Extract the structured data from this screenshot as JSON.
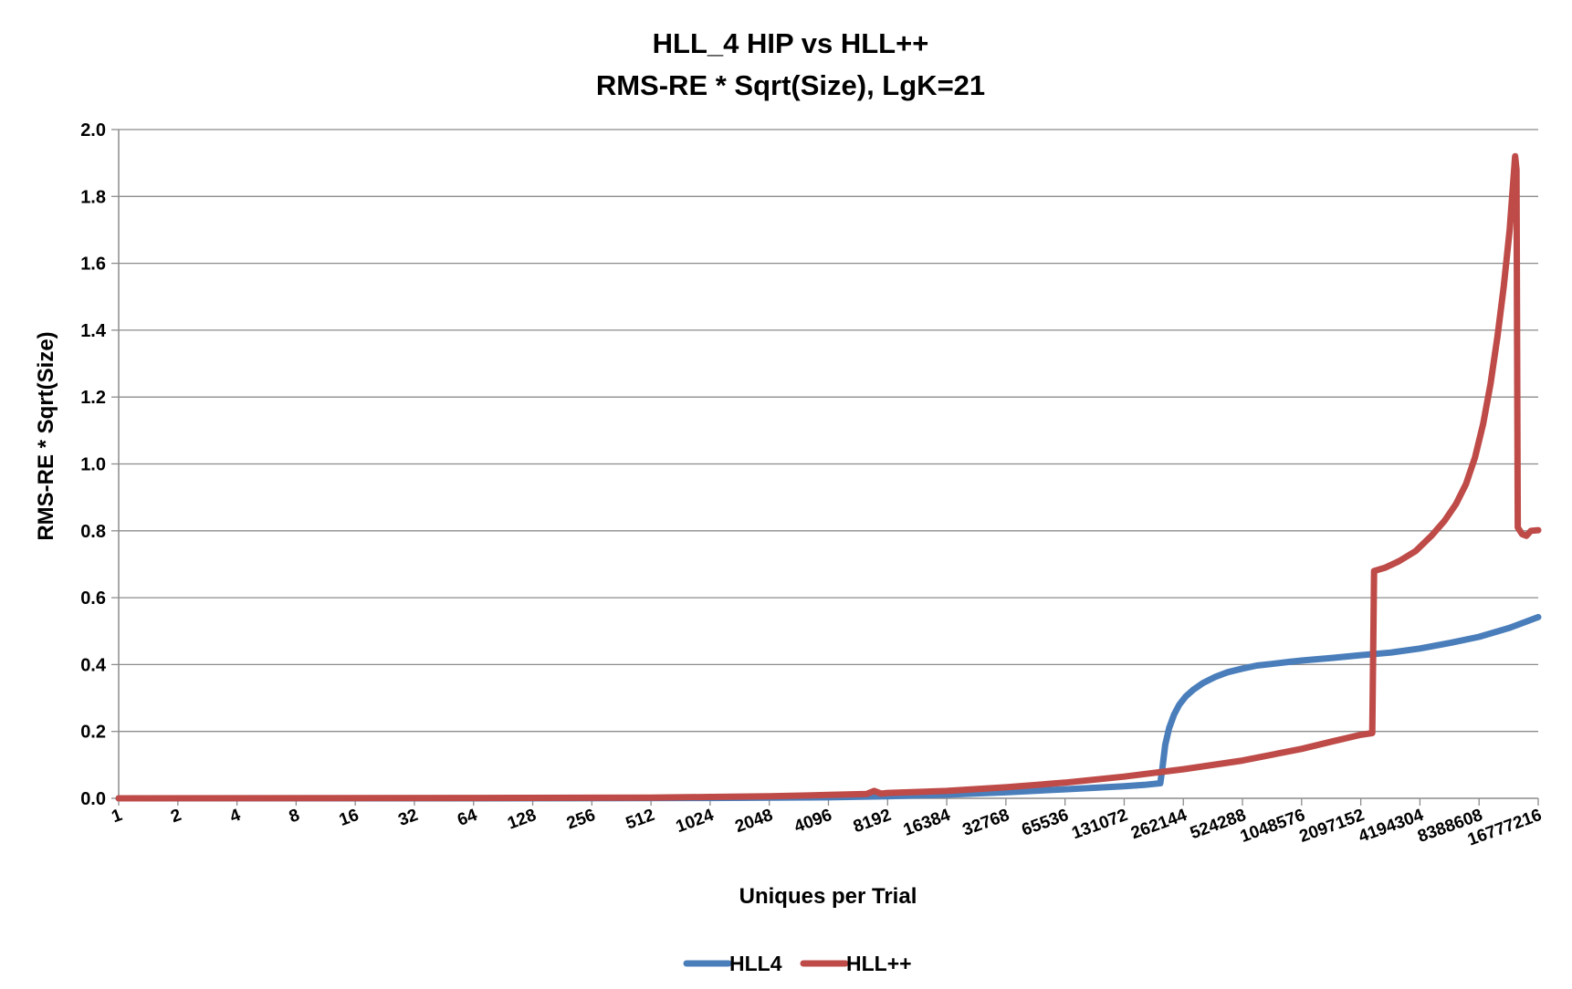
{
  "chart_data": {
    "type": "line",
    "title": [
      "HLL_4 HIP vs HLL++",
      "RMS-RE * Sqrt(Size), LgK=21"
    ],
    "xlabel": "Uniques per Trial",
    "ylabel": "RMS-RE * Sqrt(Size)",
    "x_scale": "log2",
    "xlim": [
      1,
      16777216
    ],
    "ylim": [
      0,
      2.0
    ],
    "x_ticks": [
      "1",
      "2",
      "4",
      "8",
      "16",
      "32",
      "64",
      "128",
      "256",
      "512",
      "1024",
      "2048",
      "4096",
      "8192",
      "16384",
      "32768",
      "65536",
      "131072",
      "262144",
      "524288",
      "1048576",
      "2097152",
      "4194304",
      "8388608",
      "16777216"
    ],
    "y_ticks": [
      "0.0",
      "0.2",
      "0.4",
      "0.6",
      "0.8",
      "1.0",
      "1.2",
      "1.4",
      "1.6",
      "1.8",
      "2.0"
    ],
    "grid": "horizontal",
    "legend": "bottom",
    "series": [
      {
        "name": "HLL4",
        "color": "#4a7ebb",
        "points": [
          [
            1,
            0.0
          ],
          [
            64,
            0.0
          ],
          [
            1024,
            0.001
          ],
          [
            4096,
            0.003
          ],
          [
            8192,
            0.006
          ],
          [
            16384,
            0.011
          ],
          [
            32768,
            0.018
          ],
          [
            65536,
            0.027
          ],
          [
            131072,
            0.036
          ],
          [
            166000,
            0.04
          ],
          [
            200000,
            0.045
          ],
          [
            205000,
            0.09
          ],
          [
            212000,
            0.16
          ],
          [
            222000,
            0.21
          ],
          [
            235000,
            0.25
          ],
          [
            250000,
            0.28
          ],
          [
            270000,
            0.305
          ],
          [
            295000,
            0.325
          ],
          [
            330000,
            0.345
          ],
          [
            380000,
            0.363
          ],
          [
            440000,
            0.377
          ],
          [
            524288,
            0.388
          ],
          [
            620000,
            0.397
          ],
          [
            740000,
            0.402
          ],
          [
            900000,
            0.408
          ],
          [
            1048576,
            0.412
          ],
          [
            1500000,
            0.42
          ],
          [
            2097152,
            0.428
          ],
          [
            3000000,
            0.436
          ],
          [
            4194304,
            0.448
          ],
          [
            6000000,
            0.465
          ],
          [
            8388608,
            0.483
          ],
          [
            12000000,
            0.51
          ],
          [
            16777216,
            0.542
          ]
        ]
      },
      {
        "name": "HLL++",
        "color": "#be4b48",
        "points": [
          [
            1,
            0.0
          ],
          [
            64,
            0.001
          ],
          [
            512,
            0.002
          ],
          [
            1024,
            0.004
          ],
          [
            2048,
            0.006
          ],
          [
            4096,
            0.01
          ],
          [
            6400,
            0.013
          ],
          [
            7000,
            0.022
          ],
          [
            7600,
            0.014
          ],
          [
            8192,
            0.016
          ],
          [
            16384,
            0.022
          ],
          [
            32768,
            0.033
          ],
          [
            65536,
            0.047
          ],
          [
            131072,
            0.065
          ],
          [
            262144,
            0.087
          ],
          [
            524288,
            0.113
          ],
          [
            1048576,
            0.148
          ],
          [
            1500000,
            0.17
          ],
          [
            2097152,
            0.19
          ],
          [
            2400000,
            0.195
          ],
          [
            2450000,
            0.68
          ],
          [
            2800000,
            0.69
          ],
          [
            3300000,
            0.71
          ],
          [
            4000000,
            0.74
          ],
          [
            4800000,
            0.785
          ],
          [
            5600000,
            0.83
          ],
          [
            6400000,
            0.88
          ],
          [
            7200000,
            0.94
          ],
          [
            8000000,
            1.02
          ],
          [
            8800000,
            1.12
          ],
          [
            9600000,
            1.24
          ],
          [
            10400000,
            1.38
          ],
          [
            11200000,
            1.53
          ],
          [
            12000000,
            1.7
          ],
          [
            12800000,
            1.92
          ],
          [
            13000000,
            1.88
          ],
          [
            13200000,
            0.81
          ],
          [
            13900000,
            0.79
          ],
          [
            14600000,
            0.785
          ],
          [
            15400000,
            0.8
          ],
          [
            16777216,
            0.802
          ]
        ]
      }
    ]
  }
}
